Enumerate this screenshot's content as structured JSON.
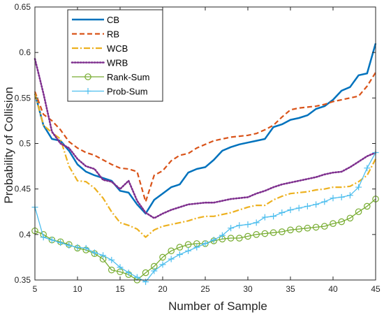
{
  "chart_data": {
    "type": "line",
    "xlabel": "Number of Sample",
    "ylabel": "Probability of Collision",
    "xlim": [
      5,
      45
    ],
    "ylim": [
      0.35,
      0.65
    ],
    "xticks": [
      5,
      10,
      15,
      20,
      25,
      30,
      35,
      40,
      45
    ],
    "yticks": [
      0.35,
      0.4,
      0.45,
      0.5,
      0.55,
      0.6,
      0.65
    ],
    "ytick_labels": [
      "0.35",
      "0.4",
      "0.45",
      "0.5",
      "0.55",
      "0.6",
      "0.65"
    ],
    "grid": false,
    "legend_position": "top-left",
    "x": [
      5,
      6,
      7,
      8,
      9,
      10,
      11,
      12,
      13,
      14,
      15,
      16,
      17,
      18,
      19,
      20,
      21,
      22,
      23,
      24,
      25,
      26,
      27,
      28,
      29,
      30,
      31,
      32,
      33,
      34,
      35,
      36,
      37,
      38,
      39,
      40,
      41,
      42,
      43,
      44,
      45
    ],
    "series": [
      {
        "name": "CB",
        "color": "#0072BD",
        "style": "solid",
        "width": 2.5,
        "marker": "none",
        "values": [
          0.555,
          0.52,
          0.505,
          0.503,
          0.492,
          0.477,
          0.469,
          0.465,
          0.462,
          0.459,
          0.448,
          0.446,
          0.433,
          0.423,
          0.438,
          0.445,
          0.452,
          0.455,
          0.468,
          0.472,
          0.474,
          0.482,
          0.492,
          0.496,
          0.499,
          0.501,
          0.503,
          0.505,
          0.518,
          0.521,
          0.526,
          0.528,
          0.531,
          0.538,
          0.541,
          0.548,
          0.558,
          0.562,
          0.575,
          0.577,
          0.61
        ]
      },
      {
        "name": "RB",
        "color": "#D95319",
        "style": "dashed",
        "width": 2.2,
        "marker": "none",
        "values": [
          0.557,
          0.532,
          0.525,
          0.515,
          0.502,
          0.495,
          0.49,
          0.487,
          0.482,
          0.477,
          0.473,
          0.472,
          0.469,
          0.436,
          0.465,
          0.47,
          0.481,
          0.487,
          0.489,
          0.495,
          0.499,
          0.503,
          0.505,
          0.507,
          0.508,
          0.509,
          0.511,
          0.515,
          0.52,
          0.529,
          0.537,
          0.539,
          0.54,
          0.541,
          0.543,
          0.546,
          0.548,
          0.55,
          0.552,
          0.563,
          0.578
        ]
      },
      {
        "name": "WCB",
        "color": "#EDB120",
        "style": "dashdot",
        "width": 2.2,
        "marker": "none",
        "values": [
          0.555,
          0.52,
          0.512,
          0.505,
          0.475,
          0.459,
          0.458,
          0.451,
          0.44,
          0.425,
          0.413,
          0.41,
          0.406,
          0.397,
          0.405,
          0.409,
          0.411,
          0.413,
          0.415,
          0.418,
          0.42,
          0.42,
          0.422,
          0.424,
          0.427,
          0.43,
          0.432,
          0.432,
          0.438,
          0.442,
          0.445,
          0.446,
          0.447,
          0.449,
          0.45,
          0.452,
          0.452,
          0.453,
          0.458,
          0.465,
          0.483
        ]
      },
      {
        "name": "WRB",
        "color": "#7E2F8E",
        "style": "dotted",
        "width": 2.6,
        "marker": "none",
        "values": [
          0.593,
          0.555,
          0.513,
          0.5,
          0.495,
          0.483,
          0.475,
          0.472,
          0.46,
          0.458,
          0.45,
          0.459,
          0.437,
          0.424,
          0.418,
          0.423,
          0.427,
          0.43,
          0.433,
          0.434,
          0.435,
          0.435,
          0.437,
          0.439,
          0.44,
          0.441,
          0.445,
          0.448,
          0.452,
          0.455,
          0.457,
          0.459,
          0.461,
          0.463,
          0.466,
          0.468,
          0.469,
          0.474,
          0.48,
          0.486,
          0.49
        ]
      },
      {
        "name": "Rank-Sum",
        "color": "#77AC30",
        "style": "solid",
        "width": 1.3,
        "marker": "circle",
        "values": [
          0.404,
          0.4,
          0.394,
          0.392,
          0.389,
          0.385,
          0.383,
          0.379,
          0.373,
          0.361,
          0.359,
          0.356,
          0.35,
          0.358,
          0.365,
          0.375,
          0.382,
          0.386,
          0.389,
          0.39,
          0.39,
          0.393,
          0.395,
          0.396,
          0.396,
          0.398,
          0.4,
          0.401,
          0.402,
          0.403,
          0.405,
          0.406,
          0.407,
          0.408,
          0.409,
          0.412,
          0.414,
          0.418,
          0.425,
          0.431,
          0.439
        ]
      },
      {
        "name": "Prob-Sum",
        "color": "#4DBEEE",
        "style": "solid",
        "width": 1.3,
        "marker": "plus",
        "values": [
          0.43,
          0.397,
          0.394,
          0.391,
          0.388,
          0.386,
          0.385,
          0.38,
          0.377,
          0.372,
          0.364,
          0.358,
          0.353,
          0.348,
          0.36,
          0.367,
          0.373,
          0.378,
          0.382,
          0.386,
          0.39,
          0.394,
          0.399,
          0.407,
          0.41,
          0.411,
          0.413,
          0.419,
          0.42,
          0.424,
          0.427,
          0.429,
          0.431,
          0.433,
          0.436,
          0.44,
          0.441,
          0.443,
          0.452,
          0.473,
          0.49
        ]
      }
    ]
  }
}
